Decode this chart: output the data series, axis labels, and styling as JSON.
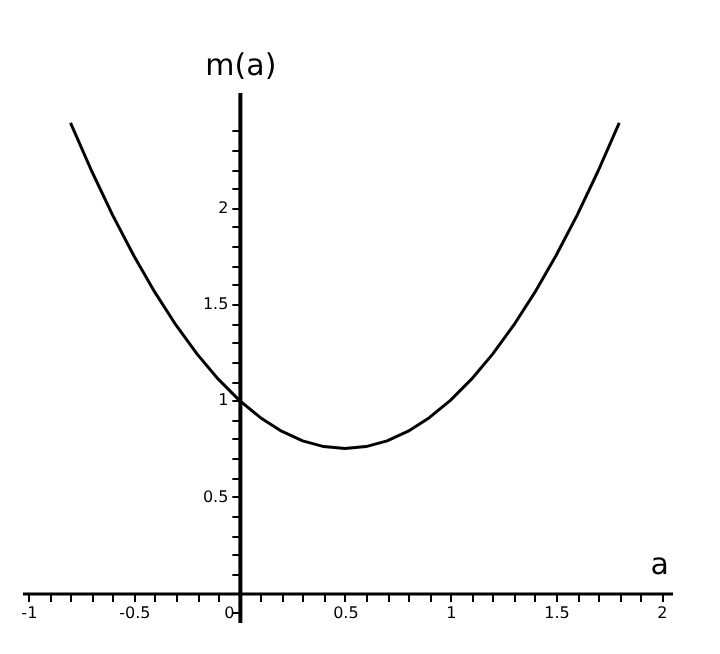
{
  "chart_data": {
    "type": "line",
    "xlabel": "a",
    "ylabel": "m(a)",
    "x": [
      -0.8,
      -0.7,
      -0.6,
      -0.5,
      -0.4,
      -0.3,
      -0.2,
      -0.1,
      0,
      0.1,
      0.2,
      0.3,
      0.4,
      0.5,
      0.6,
      0.7,
      0.8,
      0.9,
      1.0,
      1.1,
      1.2,
      1.3,
      1.4,
      1.5,
      1.6,
      1.7,
      1.8
    ],
    "series": [
      {
        "color": "#000000",
        "values": [
          2.44,
          2.19,
          1.96,
          1.75,
          1.56,
          1.39,
          1.24,
          1.11,
          1,
          0.91,
          0.84,
          0.79,
          0.76,
          0.75,
          0.76,
          0.79,
          0.84,
          0.91,
          1,
          1.11,
          1.24,
          1.39,
          1.56,
          1.75,
          1.96,
          2.19,
          2.44
        ]
      }
    ],
    "xlim": [
      -1.03,
      2.05
    ],
    "ylim": [
      -0.15,
      2.6
    ],
    "xticks": [
      -1,
      {
        "value": -0.9,
        "label": null
      },
      {
        "value": -0.8,
        "label": null
      },
      {
        "value": -0.7,
        "label": null
      },
      {
        "value": -0.6,
        "label": null
      },
      -0.5,
      {
        "value": -0.4,
        "label": null
      },
      {
        "value": -0.3,
        "label": null
      },
      {
        "value": -0.2,
        "label": null
      },
      {
        "value": -0.1,
        "label": null
      },
      0,
      {
        "value": 0.1,
        "label": null
      },
      {
        "value": 0.2,
        "label": null
      },
      {
        "value": 0.3,
        "label": null
      },
      {
        "value": 0.4,
        "label": null
      },
      0.5,
      {
        "value": 0.6,
        "label": null
      },
      {
        "value": 0.7,
        "label": null
      },
      {
        "value": 0.8,
        "label": null
      },
      {
        "value": 0.9,
        "label": null
      },
      1,
      {
        "value": 1.1,
        "label": null
      },
      {
        "value": 1.2,
        "label": null
      },
      {
        "value": 1.3,
        "label": null
      },
      {
        "value": 1.4,
        "label": null
      },
      1.5,
      {
        "value": 1.6,
        "label": null
      },
      {
        "value": 1.7,
        "label": null
      },
      {
        "value": 1.8,
        "label": null
      },
      {
        "value": 1.9,
        "label": null
      },
      2
    ],
    "yticks": [
      {
        "value": -0.1,
        "label": null
      },
      {
        "value": 0.1,
        "label": null
      },
      {
        "value": 0.2,
        "label": null
      },
      {
        "value": 0.3,
        "label": null
      },
      {
        "value": 0.4,
        "label": null
      },
      0.5,
      {
        "value": 0.6,
        "label": null
      },
      {
        "value": 0.7,
        "label": null
      },
      {
        "value": 0.8,
        "label": null
      },
      {
        "value": 0.9,
        "label": null
      },
      1,
      {
        "value": 1.1,
        "label": null
      },
      {
        "value": 1.2,
        "label": null
      },
      {
        "value": 1.3,
        "label": null
      },
      {
        "value": 1.4,
        "label": null
      },
      1.5,
      {
        "value": 1.6,
        "label": null
      },
      {
        "value": 1.7,
        "label": null
      },
      {
        "value": 1.8,
        "label": null
      },
      {
        "value": 1.9,
        "label": null
      },
      2,
      {
        "value": 2.1,
        "label": null
      },
      {
        "value": 2.2,
        "label": null
      },
      {
        "value": 2.3,
        "label": null
      },
      {
        "value": 2.4,
        "label": null
      }
    ],
    "grid": false,
    "marker": "none",
    "line_style": "solid"
  }
}
